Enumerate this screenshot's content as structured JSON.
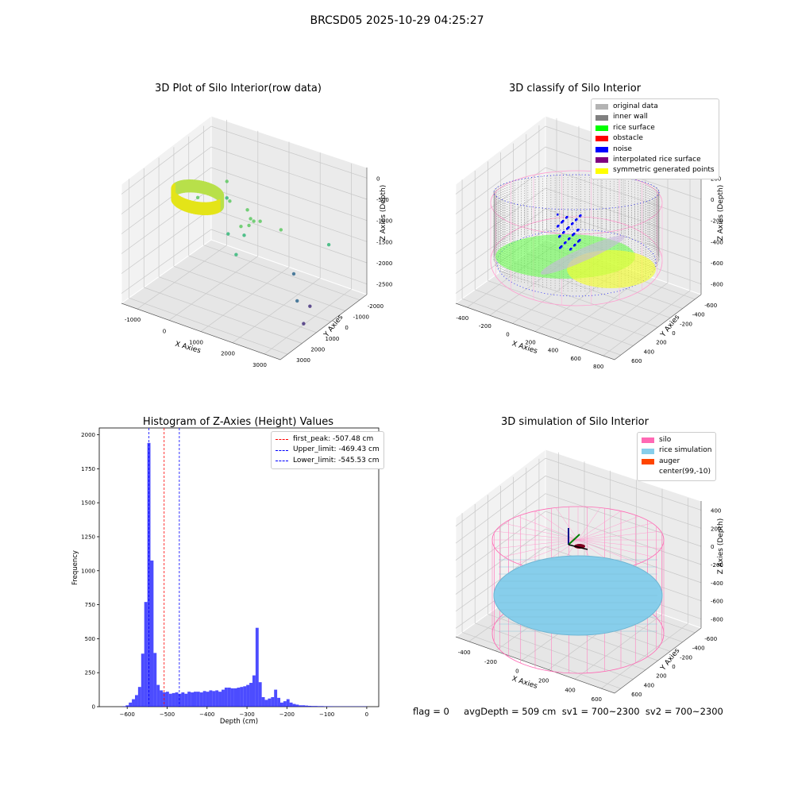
{
  "figure": {
    "title": "BRCSD05 2025-10-29 04:25:27",
    "footer": "flag = 0     avgDepth = 509 cm  sv1 = 700~2300  sv2 = 700~2300"
  },
  "chart_data": [
    {
      "type": "scatter",
      "title": "3D Plot of Silo Interior(row data)",
      "xlabel": "X Axies",
      "ylabel": "Y Axies",
      "zlabel": "Z Axies (Depth)",
      "xticks": [
        "-1000",
        "0",
        "1000",
        "2000",
        "3000"
      ],
      "yticks": [
        "-2000",
        "-1000",
        "0",
        "1000",
        "2000",
        "3000"
      ],
      "zticks": [
        "0",
        "-500",
        "-1000",
        "-1500",
        "-2000",
        "-2500"
      ],
      "xlim": [
        -1300,
        3600
      ],
      "ylim": [
        -2100,
        3400
      ],
      "zlim": [
        -2800,
        100
      ],
      "colormap": "viridis",
      "points": [
        {
          "x": -500,
          "y": 2800,
          "z": -1050
        },
        {
          "x": -450,
          "y": 2700,
          "z": -1400
        },
        {
          "x": -700,
          "y": 1400,
          "z": -1100
        },
        {
          "x": 200,
          "y": 1600,
          "z": -1000
        },
        {
          "x": 700,
          "y": 1700,
          "z": -1100
        },
        {
          "x": 900,
          "y": 1500,
          "z": -1200
        },
        {
          "x": 1100,
          "y": 1300,
          "z": -1150
        },
        {
          "x": 1000,
          "y": 1200,
          "z": -1250
        },
        {
          "x": 800,
          "y": 1100,
          "z": -1300
        },
        {
          "x": 1300,
          "y": 1300,
          "z": -1100
        },
        {
          "x": 1000,
          "y": 900,
          "z": -1400
        },
        {
          "x": 500,
          "y": 900,
          "z": -1500
        },
        {
          "x": 1800,
          "y": 1600,
          "z": -1250
        },
        {
          "x": 900,
          "y": 600,
          "z": -1800
        },
        {
          "x": 2300,
          "y": 1400,
          "z": -2100
        },
        {
          "x": 3000,
          "y": 2200,
          "z": -1450
        },
        {
          "x": 2900,
          "y": 400,
          "z": -2300
        },
        {
          "x": 3200,
          "y": 600,
          "z": -2400
        },
        {
          "x": 3200,
          "y": 200,
          "z": -2700
        }
      ],
      "ring": {
        "center_x": 0,
        "center_y": 0,
        "radius": 700,
        "z_top": -400,
        "z_bottom": -650
      }
    },
    {
      "type": "scatter",
      "title": "3D classify of Silo Interior",
      "xlabel": "X Axies",
      "ylabel": "Y Axies",
      "zlabel": "Z Axies (Depth)",
      "xticks": [
        "-400",
        "-200",
        "0",
        "200",
        "400",
        "600",
        "800"
      ],
      "yticks": [
        "-600",
        "-400",
        "-200",
        "0",
        "200",
        "400",
        "600"
      ],
      "zticks": [
        "200",
        "0",
        "-200",
        "-400",
        "-600",
        "-800"
      ],
      "xlim": [
        -550,
        800
      ],
      "ylim": [
        -650,
        650
      ],
      "zlim": [
        -950,
        350
      ],
      "legend": [
        {
          "label": "original data",
          "color": "#b3b3b3"
        },
        {
          "label": "inner wall",
          "color": "#808080"
        },
        {
          "label": "rice surface",
          "color": "#00ff00"
        },
        {
          "label": "obstacle",
          "color": "#ff0000"
        },
        {
          "label": "noise",
          "color": "#0000ff"
        },
        {
          "label": "interpolated rice surface",
          "color": "#800080"
        },
        {
          "label": "symmetric generated points",
          "color": "#ffff00"
        }
      ],
      "silo": {
        "center_x": 99,
        "center_y": -10,
        "radius": 610,
        "z_top": 60,
        "z_bottom": -930
      },
      "rice_surface_z": -560
    },
    {
      "type": "bar",
      "title": "Histogram of Z-Axies (Height) Values",
      "xlabel": "Depth (cm)",
      "ylabel": "Frequency",
      "xlim": [
        -670,
        30
      ],
      "ylim": [
        0,
        2050
      ],
      "xticks": [
        -600,
        -500,
        -400,
        -300,
        -200,
        -100,
        0
      ],
      "yticks": [
        0,
        250,
        500,
        750,
        1000,
        1250,
        1500,
        1750,
        2000
      ],
      "bar_color": "#0000ff",
      "bin_width": 7.74,
      "bin_starts": [
        -611.5,
        -603.7,
        -596.0,
        -588.3,
        -580.5,
        -572.8,
        -565.0,
        -557.3,
        -549.5,
        -541.8,
        -534.1,
        -526.3,
        -518.6,
        -510.8,
        -503.1,
        -495.3,
        -487.6,
        -479.9,
        -472.1,
        -464.4,
        -456.6,
        -448.9,
        -441.1,
        -433.4,
        -425.7,
        -417.9,
        -410.2,
        -402.4,
        -394.7,
        -386.9,
        -379.2,
        -371.5,
        -363.7,
        -356.0,
        -348.2,
        -340.5,
        -332.7,
        -325.0,
        -317.3,
        -309.5,
        -301.8,
        -294.0,
        -286.3,
        -278.5,
        -270.8,
        -263.1,
        -255.3,
        -247.6,
        -239.8,
        -232.1,
        -224.3,
        -216.6,
        -208.9,
        -201.1,
        -193.4,
        -185.6,
        -177.9,
        -170.1,
        -162.4,
        -154.7,
        -146.9,
        -139.2,
        -131.4,
        -123.7,
        -115.9,
        -108.2,
        -100.5,
        -92.7,
        -85.0,
        -77.2,
        -69.5,
        -61.7,
        -54.0,
        -46.3,
        -38.5,
        -30.8,
        -23.0,
        -15.3,
        -7.5
      ],
      "values": [
        3,
        10,
        30,
        55,
        85,
        145,
        390,
        770,
        1940,
        1075,
        395,
        160,
        120,
        105,
        110,
        95,
        100,
        105,
        95,
        105,
        95,
        110,
        105,
        110,
        110,
        105,
        115,
        110,
        120,
        115,
        120,
        110,
        125,
        140,
        140,
        135,
        135,
        140,
        145,
        150,
        160,
        175,
        230,
        580,
        180,
        70,
        50,
        60,
        70,
        125,
        65,
        30,
        40,
        55,
        30,
        20,
        15,
        10,
        10,
        8,
        6,
        5,
        5,
        4,
        4,
        3,
        3,
        3,
        2,
        2,
        2,
        2,
        2,
        2,
        2,
        2,
        2,
        2,
        2
      ],
      "lines": [
        {
          "label": "first_peak: -507.48 cm",
          "x": -507.48,
          "color": "#ff0000"
        },
        {
          "label": "Upper_limit: -469.43 cm",
          "x": -469.43,
          "color": "#0000ff"
        },
        {
          "label": "Lower_limit: -545.53 cm",
          "x": -545.53,
          "color": "#0000ff"
        }
      ]
    },
    {
      "type": "scatter",
      "title": "3D simulation of Silo Interior",
      "xlabel": "X Axies",
      "ylabel": "Y Axies",
      "zlabel": "Z Axies (Depth)",
      "xticks": [
        "-400",
        "-200",
        "0",
        "200",
        "400",
        "600"
      ],
      "yticks": [
        "-600",
        "-400",
        "-200",
        "0",
        "200",
        "400",
        "600"
      ],
      "zticks": [
        "400",
        "200",
        "0",
        "-200",
        "-400",
        "-600",
        "-800"
      ],
      "xlim": [
        -550,
        750
      ],
      "ylim": [
        -700,
        700
      ],
      "zlim": [
        -950,
        450
      ],
      "legend": [
        {
          "label": "silo",
          "color": "#ff69b4"
        },
        {
          "label": "rice simulation",
          "color": "#87ceeb"
        },
        {
          "label": "auger",
          "color": "#ff4500"
        },
        {
          "label": "center(99,-10)",
          "color": ""
        }
      ],
      "silo": {
        "center_x": 99,
        "center_y": -10,
        "radius": 620,
        "z_top": 60,
        "z_bottom": -930
      },
      "rice_surface_z": -509
    }
  ]
}
